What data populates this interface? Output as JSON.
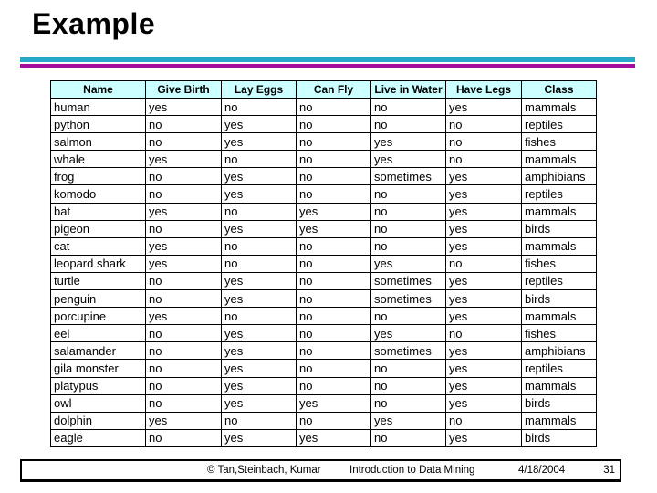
{
  "slide": {
    "title": "Example",
    "colors": {
      "teal_bar": "#29A9C9",
      "magenta_bar": "#A30F9B",
      "table_header_bg": "#CCFFFF",
      "border": "#000000"
    }
  },
  "table": {
    "columns": [
      "Name",
      "Give Birth",
      "Lay Eggs",
      "Can Fly",
      "Live in Water",
      "Have Legs",
      "Class"
    ],
    "rows": [
      [
        "human",
        "yes",
        "no",
        "no",
        "no",
        "yes",
        "mammals"
      ],
      [
        "python",
        "no",
        "yes",
        "no",
        "no",
        "no",
        "reptiles"
      ],
      [
        "salmon",
        "no",
        "yes",
        "no",
        "yes",
        "no",
        "fishes"
      ],
      [
        "whale",
        "yes",
        "no",
        "no",
        "yes",
        "no",
        "mammals"
      ],
      [
        "frog",
        "no",
        "yes",
        "no",
        "sometimes",
        "yes",
        "amphibians"
      ],
      [
        "komodo",
        "no",
        "yes",
        "no",
        "no",
        "yes",
        "reptiles"
      ],
      [
        "bat",
        "yes",
        "no",
        "yes",
        "no",
        "yes",
        "mammals"
      ],
      [
        "pigeon",
        "no",
        "yes",
        "yes",
        "no",
        "yes",
        "birds"
      ],
      [
        "cat",
        "yes",
        "no",
        "no",
        "no",
        "yes",
        "mammals"
      ],
      [
        "leopard shark",
        "yes",
        "no",
        "no",
        "yes",
        "no",
        "fishes"
      ],
      [
        "turtle",
        "no",
        "yes",
        "no",
        "sometimes",
        "yes",
        "reptiles"
      ],
      [
        "penguin",
        "no",
        "yes",
        "no",
        "sometimes",
        "yes",
        "birds"
      ],
      [
        "porcupine",
        "yes",
        "no",
        "no",
        "no",
        "yes",
        "mammals"
      ],
      [
        "eel",
        "no",
        "yes",
        "no",
        "yes",
        "no",
        "fishes"
      ],
      [
        "salamander",
        "no",
        "yes",
        "no",
        "sometimes",
        "yes",
        "amphibians"
      ],
      [
        "gila monster",
        "no",
        "yes",
        "no",
        "no",
        "yes",
        "reptiles"
      ],
      [
        "platypus",
        "no",
        "yes",
        "no",
        "no",
        "yes",
        "mammals"
      ],
      [
        "owl",
        "no",
        "yes",
        "yes",
        "no",
        "yes",
        "birds"
      ],
      [
        "dolphin",
        "yes",
        "no",
        "no",
        "yes",
        "no",
        "mammals"
      ],
      [
        "eagle",
        "no",
        "yes",
        "yes",
        "no",
        "yes",
        "birds"
      ]
    ]
  },
  "footer": {
    "copyright": "© Tan,Steinbach, Kumar",
    "course_title": "Introduction to Data Mining",
    "date": "4/18/2004",
    "page_number": "31"
  }
}
